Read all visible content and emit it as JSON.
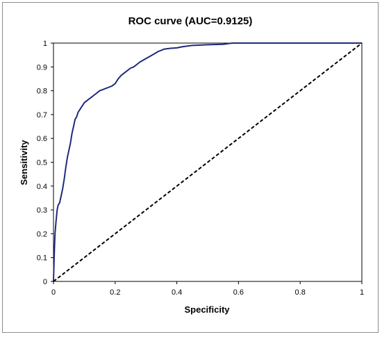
{
  "chart_data": {
    "type": "line",
    "title": "ROC curve (AUC=0.9125)",
    "xlabel": "Specificity",
    "ylabel": "Sensitivity",
    "xlim": [
      0,
      1
    ],
    "ylim": [
      0,
      1
    ],
    "xticks": [
      "0",
      "0.2",
      "0.4",
      "0.6",
      "0.8",
      "1"
    ],
    "yticks": [
      "0",
      "0.1",
      "0.2",
      "0.3",
      "0.4",
      "0.5",
      "0.6",
      "0.7",
      "0.8",
      "0.9",
      "1"
    ],
    "grid": false,
    "legend": "none",
    "series": [
      {
        "style": "solid",
        "color": "#1f2a7a",
        "x": [
          0,
          0.003,
          0.005,
          0.008,
          0.012,
          0.015,
          0.02,
          0.025,
          0.03,
          0.035,
          0.04,
          0.045,
          0.05,
          0.055,
          0.06,
          0.065,
          0.07,
          0.075,
          0.08,
          0.09,
          0.1,
          0.11,
          0.12,
          0.13,
          0.14,
          0.15,
          0.16,
          0.17,
          0.18,
          0.19,
          0.2,
          0.21,
          0.22,
          0.23,
          0.24,
          0.25,
          0.26,
          0.27,
          0.28,
          0.3,
          0.32,
          0.34,
          0.36,
          0.38,
          0.4,
          0.42,
          0.45,
          0.5,
          0.55,
          0.58,
          0.6,
          0.7,
          0.8,
          0.9,
          1.0
        ],
        "y": [
          0,
          0.13,
          0.2,
          0.25,
          0.3,
          0.32,
          0.33,
          0.36,
          0.39,
          0.43,
          0.48,
          0.52,
          0.55,
          0.58,
          0.62,
          0.65,
          0.68,
          0.69,
          0.71,
          0.73,
          0.75,
          0.76,
          0.77,
          0.78,
          0.79,
          0.8,
          0.805,
          0.81,
          0.815,
          0.82,
          0.83,
          0.85,
          0.865,
          0.875,
          0.885,
          0.895,
          0.9,
          0.91,
          0.92,
          0.935,
          0.95,
          0.965,
          0.975,
          0.978,
          0.98,
          0.985,
          0.99,
          0.993,
          0.995,
          1.0,
          1.0,
          1.0,
          1.0,
          1.0,
          1.0
        ]
      },
      {
        "style": "dashed",
        "color": "#000000",
        "x": [
          0,
          1
        ],
        "y": [
          0,
          1
        ]
      }
    ]
  }
}
